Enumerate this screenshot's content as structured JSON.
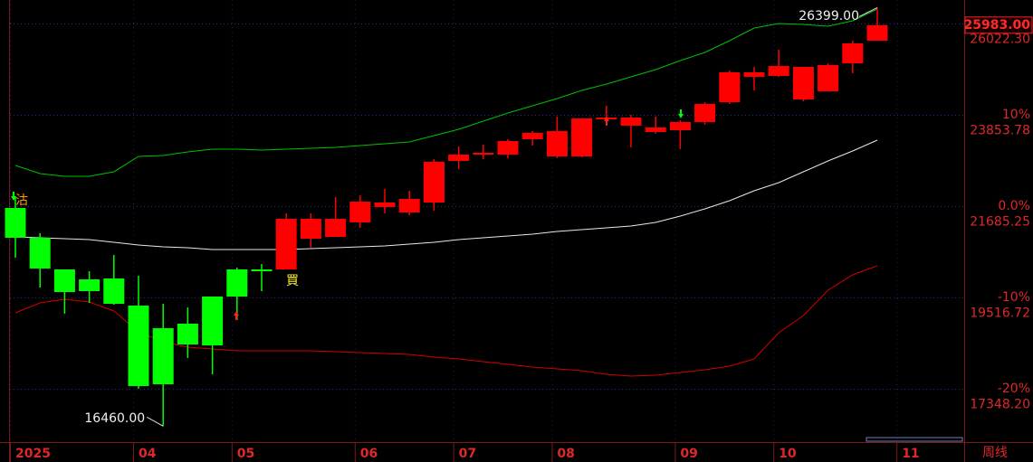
{
  "chart_data": {
    "type": "candlestick",
    "period_label": "周线",
    "categories": [
      "2025",
      null,
      null,
      null,
      null,
      "04",
      null,
      null,
      null,
      "05",
      null,
      null,
      null,
      null,
      "06",
      null,
      null,
      null,
      "07",
      null,
      null,
      null,
      "08",
      null,
      null,
      null,
      null,
      "09",
      null,
      null,
      null,
      "10",
      null,
      null,
      null,
      null,
      "11"
    ],
    "open": [
      21642,
      20934,
      20182,
      19946,
      19967,
      19323,
      18787,
      18894,
      19538,
      20182,
      20182,
      20182,
      20912,
      20955,
      21299,
      21663,
      21535,
      21771,
      22758,
      22909,
      22909,
      23274,
      22866,
      22866,
      23746,
      23596,
      23446,
      23488,
      23682,
      24154,
      24755,
      24777,
      24219,
      24412,
      25077,
      25614,
      null
    ],
    "high": [
      21900,
      21041,
      20182,
      20139,
      20526,
      20032,
      19366,
      19280,
      19538,
      20225,
      20311,
      21513,
      21513,
      21900,
      21943,
      22093,
      22050,
      22801,
      23102,
      23145,
      23274,
      23467,
      23811,
      23768,
      24068,
      23853,
      23811,
      23725,
      24154,
      24906,
      24992,
      25399,
      24992,
      25078,
      25614,
      26399,
      null
    ],
    "low": [
      20461,
      19753,
      19130,
      19388,
      19345,
      17348,
      16460,
      18078,
      17691,
      18980,
      19667,
      20182,
      20697,
      20955,
      21170,
      21513,
      21470,
      21578,
      22565,
      22801,
      22823,
      23124,
      22823,
      22845,
      23617,
      23081,
      23403,
      23038,
      23617,
      24111,
      24433,
      24755,
      24175,
      24412,
      24841,
      25614,
      null
    ],
    "close": [
      20934,
      20204,
      19645,
      19667,
      19366,
      17412,
      17455,
      18400,
      18379,
      19538,
      20139,
      21384,
      21384,
      21384,
      21792,
      21771,
      21857,
      22737,
      22909,
      22952,
      23231,
      23424,
      23467,
      23768,
      23789,
      23789,
      23553,
      23682,
      24111,
      24863,
      24863,
      25013,
      24992,
      25035,
      25550,
      25983,
      null
    ],
    "up_color": "#ff0000",
    "down_color": "#00ff00",
    "series": [
      {
        "color": "#00c000",
        "values": [
          22651,
          22458,
          22394,
          22394,
          22501,
          22866,
          22887,
          22973,
          23038,
          23038,
          23016,
          23038,
          23059,
          23081,
          23123,
          23166,
          23209,
          23360,
          23510,
          23703,
          23896,
          24068,
          24240,
          24433,
          24583,
          24755,
          24927,
          25142,
          25335,
          25614,
          25915,
          26022,
          26000,
          25958,
          26086,
          26365,
          null
        ]
      },
      {
        "color": "#e8e8e8",
        "values": [
          20955,
          20934,
          20912,
          20891,
          20826,
          20762,
          20719,
          20697,
          20654,
          20654,
          20654,
          20654,
          20676,
          20697,
          20719,
          20740,
          20783,
          20826,
          20891,
          20934,
          20976,
          21019,
          21084,
          21127,
          21170,
          21213,
          21299,
          21449,
          21621,
          21814,
          22050,
          22243,
          22501,
          22759,
          22995,
          23252,
          null
        ]
      },
      {
        "color": "#d00000",
        "values": [
          19152,
          19388,
          19474,
          19409,
          19194,
          18701,
          18464,
          18336,
          18293,
          18250,
          18250,
          18250,
          18250,
          18228,
          18207,
          18185,
          18164,
          18100,
          18057,
          17992,
          17928,
          17863,
          17820,
          17777,
          17692,
          17649,
          17670,
          17735,
          17799,
          17885,
          18057,
          18679,
          19087,
          19688,
          20053,
          20268,
          null
        ]
      }
    ],
    "ylim": [
      16060,
      26580
    ],
    "yticks": [
      {
        "value": 23853.78,
        "label": "10%"
      },
      {
        "value": 21685.25,
        "label": "0.0%"
      },
      {
        "value": 19516.72,
        "label": "-10%"
      },
      {
        "value": 17348.2,
        "label": "-20%"
      }
    ],
    "price_ticks": [
      {
        "value": 26022.3,
        "label": "26022.30"
      },
      23853.78,
      21685.25,
      19516.72,
      {
        "value": 17348.2,
        "label": "17348.20"
      }
    ],
    "last_price": {
      "value": 25983,
      "label": "25983.00"
    },
    "max_label": {
      "value": 26399,
      "label": "26399.00"
    },
    "min_label": {
      "value": 16460,
      "label": "16460.00"
    },
    "annotations": [
      "沽",
      "買"
    ],
    "grid": true
  }
}
